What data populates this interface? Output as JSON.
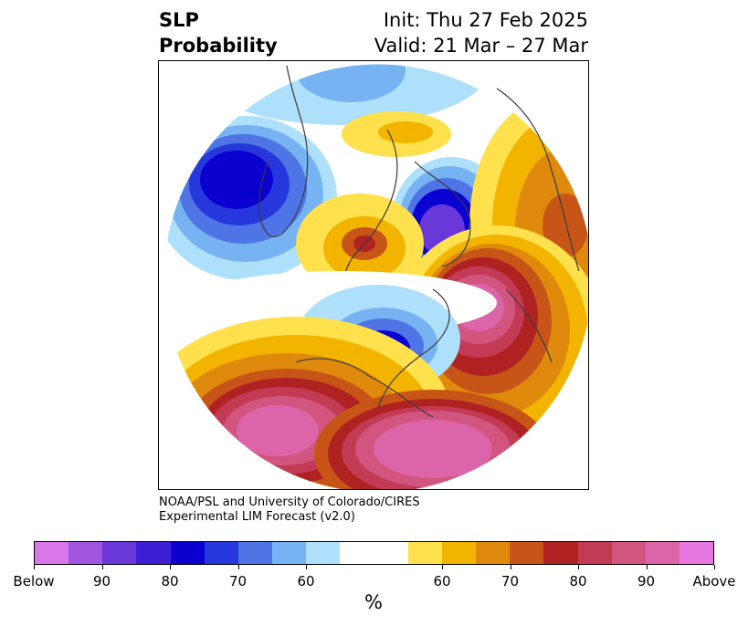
{
  "title": {
    "left_line1": "SLP",
    "left_line2": "Probability",
    "right_line1": "Init: Thu 27 Feb 2025",
    "right_line2": "Valid: 21 Mar – 27 Mar"
  },
  "credit": {
    "line1": "NOAA/PSL and University of Colorado/CIRES",
    "line2": "Experimental LIM Forecast (v2.0)"
  },
  "colorbar": {
    "colors": [
      "#d977e8",
      "#a055e0",
      "#6a38d8",
      "#3f1fd4",
      "#0a00d0",
      "#2638dc",
      "#4e74e6",
      "#77b3f2",
      "#aee0fb",
      "#ffffff",
      "#ffffff",
      "#ffe14d",
      "#f3b400",
      "#df8a0c",
      "#c85518",
      "#b02222",
      "#c33a55",
      "#d1557e",
      "#dc64a8",
      "#e878e0"
    ],
    "tick_labels": [
      "Below",
      "90",
      "80",
      "70",
      "60",
      "60",
      "70",
      "80",
      "90",
      "Above"
    ],
    "unit": "%"
  },
  "legend_colors": {
    "below_extreme": "#d977e8",
    "above_extreme": "#e878e0"
  }
}
